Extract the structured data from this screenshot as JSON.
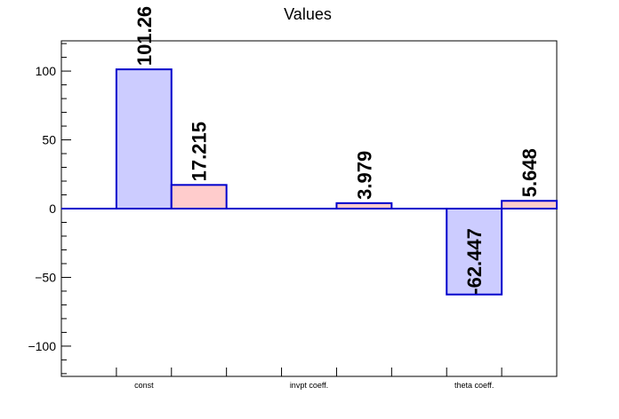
{
  "chart_data": {
    "type": "bar",
    "title": "Values",
    "xlabel": "",
    "ylabel": "",
    "ylim": [
      -122,
      122
    ],
    "yticks": [
      -100,
      -50,
      0,
      50,
      100
    ],
    "yticks_display": [
      "−100",
      "−50",
      "0",
      "50",
      "100"
    ],
    "slots": 9,
    "categories": [
      {
        "label": "const",
        "slot_center": 2
      },
      {
        "label": "invpt coeff.",
        "slot_center": 5
      },
      {
        "label": "theta coeff.",
        "slot_center": 8
      }
    ],
    "grid": false,
    "legend": "none",
    "colors": {
      "series1_fill": "#ccccff",
      "series2_fill": "#ffcccc",
      "outline": "#0000cc",
      "axis": "#000000"
    },
    "series": [
      {
        "values": [
          {
            "slot": 1,
            "value": 101.26,
            "label": "101.26"
          },
          {
            "slot": 4,
            "value": 0,
            "label": ""
          },
          {
            "slot": 7,
            "value": -62.447,
            "label": "-62.447"
          }
        ]
      },
      {
        "values": [
          {
            "slot": 2,
            "value": 17.215,
            "label": "17.215"
          },
          {
            "slot": 5,
            "value": 3.979,
            "label": "3.979"
          },
          {
            "slot": 8,
            "value": 5.648,
            "label": "5.648"
          }
        ]
      }
    ]
  }
}
